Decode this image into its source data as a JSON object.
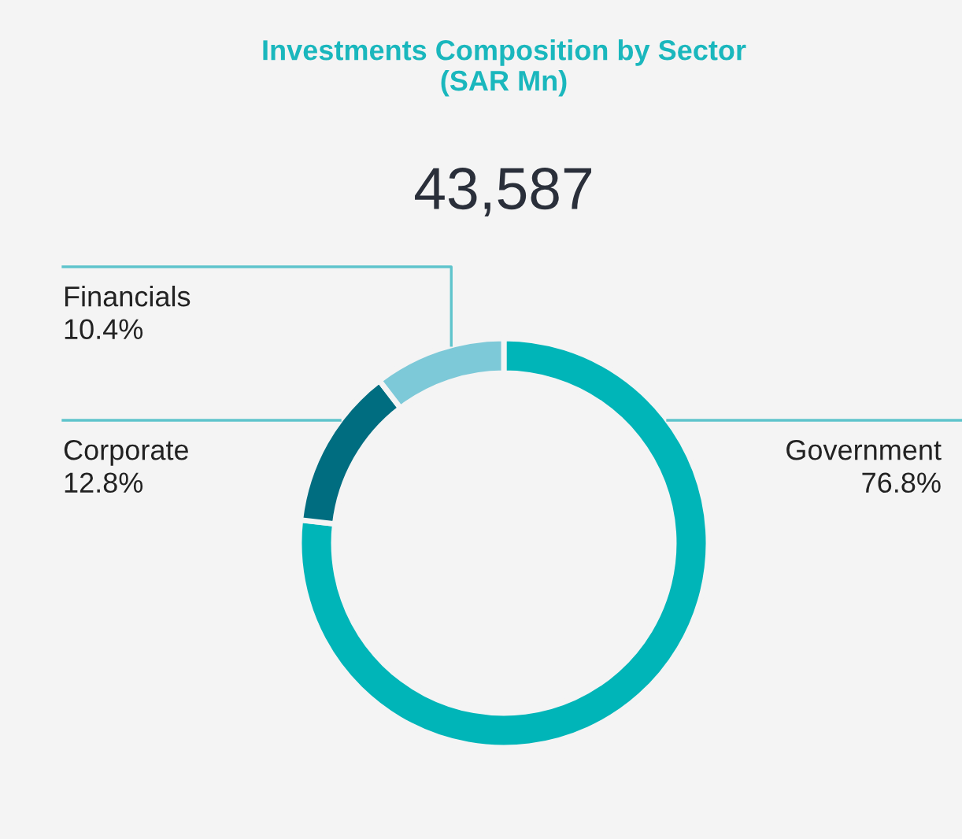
{
  "chart_data": {
    "type": "donut",
    "title": "Investments Composition by Sector\n(SAR Mn)",
    "subtitle": "43,587",
    "categories": [
      "Government",
      "Corporate",
      "Financials"
    ],
    "values": [
      76.8,
      12.8,
      10.4
    ],
    "value_labels": [
      "76.8%",
      "12.8%",
      "10.4%"
    ],
    "colors": [
      "#00b5b8",
      "#006d80",
      "#7dc9d8"
    ],
    "legend": false
  }
}
